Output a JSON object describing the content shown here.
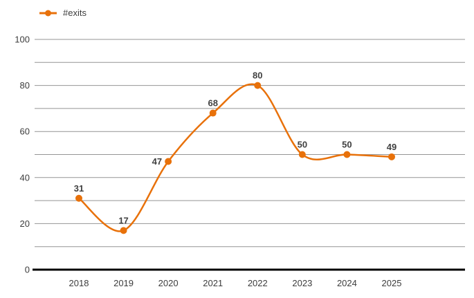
{
  "chart_data": {
    "type": "line",
    "title": "",
    "categories": [
      "2018",
      "2019",
      "2020",
      "2021",
      "2022",
      "2023",
      "2024",
      "2025"
    ],
    "series": [
      {
        "name": "#exits",
        "color": "#E8710A",
        "values": [
          31,
          17,
          47,
          68,
          80,
          50,
          50,
          49
        ]
      }
    ],
    "xlabel": "",
    "ylabel": "",
    "ylim": [
      0,
      100
    ],
    "ytick_labels": [
      0,
      20,
      40,
      60,
      80,
      100
    ],
    "grid_interval": 10,
    "grid": true,
    "curve": "smooth",
    "point_labels_visible": true,
    "point_label_positions": [
      "above",
      "above",
      "left",
      "above",
      "above",
      "above",
      "above",
      "above"
    ],
    "legend_position": "top-left",
    "colors": {
      "series": "#E8710A",
      "grid_line": "#949494",
      "axis_line": "#000000",
      "axis_text": "#3c3c3c",
      "data_label": "#404040",
      "background": "#ffffff"
    }
  }
}
